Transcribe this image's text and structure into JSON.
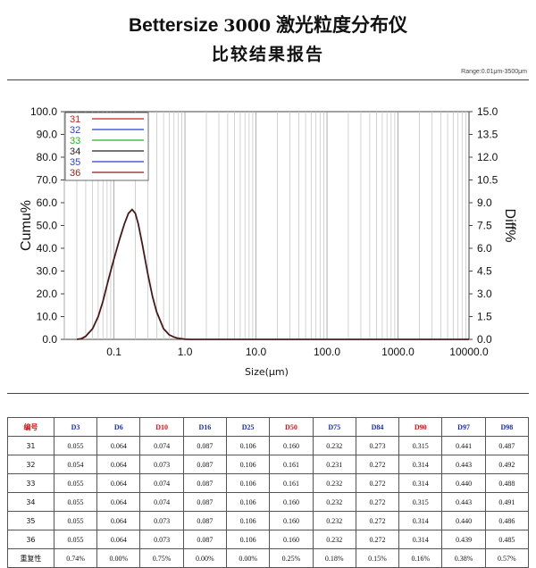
{
  "header": {
    "brand": "Bettersize",
    "model": "3000",
    "product": "激光粒度分布仪",
    "subtitle": "比较结果报告",
    "range": "Range:0.01μm-3500μm"
  },
  "chart_data": {
    "type": "line",
    "xlabel": "Size(μm)",
    "ylabel_left": "Cumu%",
    "ylabel_right": "Diff%",
    "xscale": "log",
    "xlim": [
      0.02,
      10000
    ],
    "ylim_left": [
      0,
      100
    ],
    "ylim_right": [
      0,
      15
    ],
    "xticks": [
      0.1,
      1,
      10,
      100,
      1000,
      10000
    ],
    "xtick_labels": [
      "0.1",
      "1.0",
      "10.0",
      "100.0",
      "1000.0",
      "10000.0"
    ],
    "yticks_left": [
      "0.0",
      "10.0",
      "20.0",
      "30.0",
      "40.0",
      "50.0",
      "60.0",
      "70.0",
      "80.0",
      "90.0",
      "100.0"
    ],
    "yticks_right": [
      "0.0",
      "1.5",
      "3.0",
      "4.5",
      "6.0",
      "7.5",
      "9.0",
      "10.5",
      "12.0",
      "13.5",
      "15.0"
    ],
    "grid": true,
    "legend_position": "top-left",
    "series": [
      {
        "name": "31",
        "color": "#d11d1d"
      },
      {
        "name": "32",
        "color": "#2a3fd1"
      },
      {
        "name": "33",
        "color": "#22b322"
      },
      {
        "name": "34",
        "color": "#222222"
      },
      {
        "name": "35",
        "color": "#2a3fd1"
      },
      {
        "name": "36",
        "color": "#8a1f1f"
      }
    ],
    "curve": {
      "axis": "right",
      "x": [
        0.03,
        0.035,
        0.04,
        0.05,
        0.06,
        0.07,
        0.08,
        0.09,
        0.1,
        0.12,
        0.14,
        0.16,
        0.18,
        0.2,
        0.22,
        0.25,
        0.3,
        0.35,
        0.4,
        0.5,
        0.6,
        0.7,
        0.8,
        1.0,
        1.2,
        10000
      ],
      "y": [
        0.0,
        0.05,
        0.2,
        0.7,
        1.5,
        2.5,
        3.6,
        4.5,
        5.3,
        6.6,
        7.6,
        8.3,
        8.55,
        8.3,
        7.6,
        6.3,
        4.3,
        2.8,
        1.8,
        0.7,
        0.3,
        0.15,
        0.07,
        0.01,
        0.0,
        0.0
      ]
    }
  },
  "table": {
    "headers": [
      "编号",
      "D3",
      "D6",
      "D10",
      "D16",
      "D25",
      "D50",
      "D75",
      "D84",
      "D90",
      "D97",
      "D98"
    ],
    "red_headers": [
      "编号",
      "D10",
      "D50",
      "D90"
    ],
    "rows": [
      [
        "31",
        "0.055",
        "0.064",
        "0.074",
        "0.087",
        "0.106",
        "0.160",
        "0.232",
        "0.273",
        "0.315",
        "0.441",
        "0.487"
      ],
      [
        "32",
        "0.054",
        "0.064",
        "0.073",
        "0.087",
        "0.106",
        "0.161",
        "0.231",
        "0.272",
        "0.314",
        "0.443",
        "0.492"
      ],
      [
        "33",
        "0.055",
        "0.064",
        "0.074",
        "0.087",
        "0.106",
        "0.161",
        "0.232",
        "0.272",
        "0.314",
        "0.440",
        "0.488"
      ],
      [
        "34",
        "0.055",
        "0.064",
        "0.074",
        "0.087",
        "0.106",
        "0.160",
        "0.232",
        "0.272",
        "0.315",
        "0.443",
        "0.491"
      ],
      [
        "35",
        "0.055",
        "0.064",
        "0.073",
        "0.087",
        "0.106",
        "0.160",
        "0.232",
        "0.272",
        "0.314",
        "0.440",
        "0.486"
      ],
      [
        "36",
        "0.055",
        "0.064",
        "0.073",
        "0.087",
        "0.106",
        "0.160",
        "0.232",
        "0.272",
        "0.314",
        "0.439",
        "0.485"
      ],
      [
        "重复性",
        "0.74%",
        "0.00%",
        "0.75%",
        "0.00%",
        "0.00%",
        "0.25%",
        "0.18%",
        "0.15%",
        "0.16%",
        "0.38%",
        "0.57%"
      ]
    ]
  }
}
